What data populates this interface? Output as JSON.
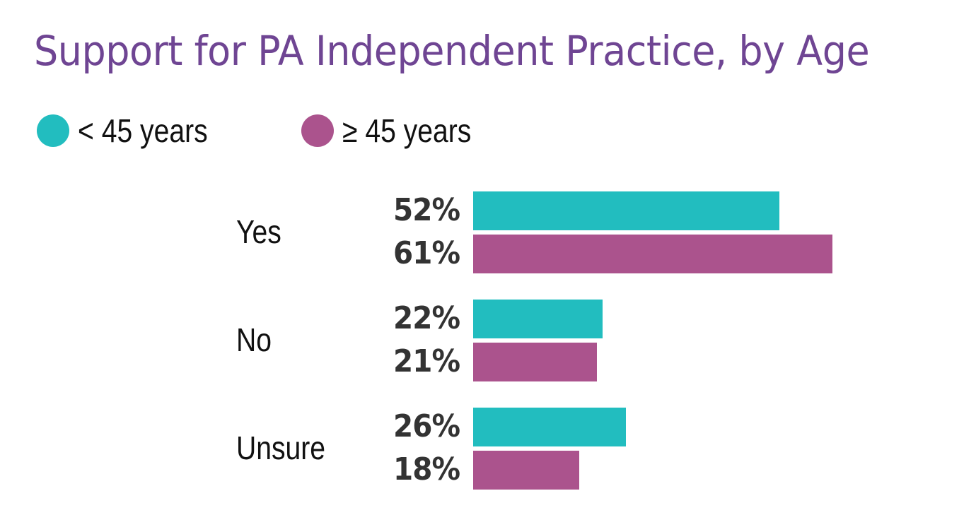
{
  "colors": {
    "under45": "#22bdbf",
    "over45": "#ab538d",
    "title": "#6f4593",
    "text": "#111111",
    "value_text": "#333333"
  },
  "chart_data": {
    "type": "bar",
    "orientation": "horizontal",
    "title": "Support for PA Independent Practice, by Age",
    "categories": [
      "Yes",
      "No",
      "Unsure"
    ],
    "series": [
      {
        "name": "< 45 years",
        "values": [
          52,
          22,
          26
        ],
        "labels": [
          "52%",
          "22%",
          "26%"
        ]
      },
      {
        "name": "≥ 45 years",
        "values": [
          61,
          21,
          18
        ],
        "labels": [
          "61%",
          "21%",
          "18%"
        ]
      }
    ],
    "xlabel": "",
    "ylabel": "",
    "grid": false,
    "legend_position": "top-left",
    "unit": "%"
  },
  "title": "Support for PA Independent Practice, by Age",
  "legend": [
    {
      "label": "< 45 years"
    },
    {
      "label": "≥ 45 years"
    }
  ],
  "groups": [
    {
      "category": "Yes",
      "bars": [
        {
          "label": "52%"
        },
        {
          "label": "61%"
        }
      ]
    },
    {
      "category": "No",
      "bars": [
        {
          "label": "22%"
        },
        {
          "label": "21%"
        }
      ]
    },
    {
      "category": "Unsure",
      "bars": [
        {
          "label": "26%"
        },
        {
          "label": "18%"
        }
      ]
    }
  ]
}
